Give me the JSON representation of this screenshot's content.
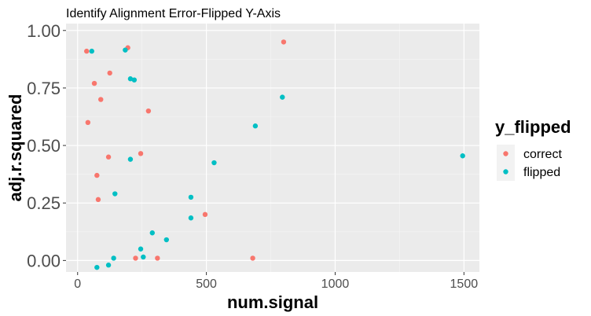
{
  "chart_data": {
    "type": "scatter",
    "title": "Identify Alignment Error-Flipped Y-Axis",
    "xlabel": "num.signal",
    "ylabel": "adj.r.squared",
    "xlim": [
      -45,
      1560
    ],
    "ylim": [
      -0.05,
      1.03
    ],
    "x_ticks": [
      0,
      500,
      1000,
      1500
    ],
    "x_tick_labels": [
      "0",
      "500",
      "1000",
      "1500"
    ],
    "y_ticks": [
      0,
      0.25,
      0.5,
      0.75,
      1.0
    ],
    "y_tick_labels": [
      "0.00",
      "0.25",
      "0.50",
      "0.75",
      "1.00"
    ],
    "grid": true,
    "legend": {
      "title": "y_flipped",
      "placement": "right"
    },
    "series": [
      {
        "name": "correct",
        "color": "#F8766D",
        "points": [
          {
            "x": 35,
            "y": 0.91
          },
          {
            "x": 195,
            "y": 0.925
          },
          {
            "x": 800,
            "y": 0.95
          },
          {
            "x": 125,
            "y": 0.815
          },
          {
            "x": 65,
            "y": 0.77
          },
          {
            "x": 90,
            "y": 0.7
          },
          {
            "x": 275,
            "y": 0.65
          },
          {
            "x": 40,
            "y": 0.6
          },
          {
            "x": 245,
            "y": 0.465
          },
          {
            "x": 120,
            "y": 0.45
          },
          {
            "x": 75,
            "y": 0.37
          },
          {
            "x": 80,
            "y": 0.265
          },
          {
            "x": 495,
            "y": 0.2
          },
          {
            "x": 225,
            "y": 0.01
          },
          {
            "x": 310,
            "y": 0.01
          },
          {
            "x": 680,
            "y": 0.01
          }
        ]
      },
      {
        "name": "flipped",
        "color": "#00BFC4",
        "points": [
          {
            "x": 55,
            "y": 0.91
          },
          {
            "x": 185,
            "y": 0.915
          },
          {
            "x": 205,
            "y": 0.79
          },
          {
            "x": 220,
            "y": 0.785
          },
          {
            "x": 795,
            "y": 0.71
          },
          {
            "x": 690,
            "y": 0.585
          },
          {
            "x": 1495,
            "y": 0.455
          },
          {
            "x": 205,
            "y": 0.44
          },
          {
            "x": 530,
            "y": 0.425
          },
          {
            "x": 145,
            "y": 0.29
          },
          {
            "x": 440,
            "y": 0.275
          },
          {
            "x": 440,
            "y": 0.185
          },
          {
            "x": 290,
            "y": 0.12
          },
          {
            "x": 345,
            "y": 0.09
          },
          {
            "x": 245,
            "y": 0.05
          },
          {
            "x": 140,
            "y": 0.01
          },
          {
            "x": 255,
            "y": 0.015
          },
          {
            "x": 75,
            "y": -0.03
          },
          {
            "x": 120,
            "y": -0.02
          }
        ]
      }
    ]
  }
}
